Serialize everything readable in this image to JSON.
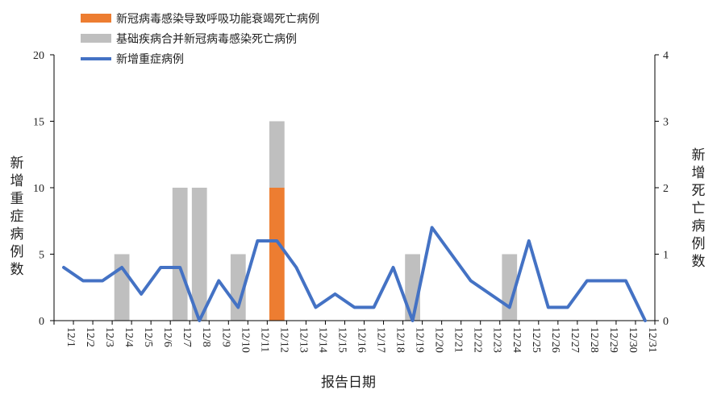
{
  "chart_data": {
    "type": "bar+line",
    "title": "",
    "xlabel": "报告日期",
    "ylabel_left": "新增重症病例数",
    "ylabel_right": "新增死亡病例数",
    "categories": [
      "12/1",
      "12/2",
      "12/3",
      "12/4",
      "12/5",
      "12/6",
      "12/7",
      "12/8",
      "12/9",
      "12/10",
      "12/11",
      "12/12",
      "12/13",
      "12/14",
      "12/15",
      "12/16",
      "12/17",
      "12/18",
      "12/19",
      "12/20",
      "12/21",
      "12/22",
      "12/23",
      "12/24",
      "12/25",
      "12/26",
      "12/27",
      "12/28",
      "12/29",
      "12/30",
      "12/31"
    ],
    "ylim_left": [
      0,
      20
    ],
    "yticks_left": [
      "0",
      "5",
      "10",
      "15",
      "20"
    ],
    "ylim_right": [
      0,
      4
    ],
    "yticks_right": [
      "0",
      "1",
      "2",
      "3",
      "4"
    ],
    "grid": false,
    "legend_position": "top-left",
    "series": [
      {
        "name": "新冠病毒感染导致呼吸功能衰竭死亡病例",
        "kind": "bar",
        "axis": "right",
        "color": "#ED7D31",
        "values": [
          0,
          0,
          0,
          0,
          0,
          0,
          0,
          0,
          0,
          0,
          0,
          2,
          0,
          0,
          0,
          0,
          0,
          0,
          0,
          0,
          0,
          0,
          0,
          0,
          0,
          0,
          0,
          0,
          0,
          0,
          0
        ]
      },
      {
        "name": "基础疾病合并新冠病毒感染死亡病例",
        "kind": "bar",
        "axis": "right",
        "color": "#BFBFBF",
        "values": [
          0,
          0,
          0,
          1,
          0,
          0,
          2,
          2,
          0,
          1,
          0,
          1,
          0,
          0,
          0,
          0,
          0,
          0,
          1,
          0,
          0,
          0,
          0,
          1,
          0,
          0,
          0,
          0,
          0,
          0,
          0
        ]
      },
      {
        "name": "新增重症病例",
        "kind": "line",
        "axis": "left",
        "color": "#4472C4",
        "values": [
          4,
          3,
          3,
          4,
          2,
          4,
          4,
          0,
          3,
          1,
          6,
          6,
          4,
          1,
          2,
          1,
          1,
          4,
          0,
          7,
          5,
          3,
          2,
          1,
          6,
          1,
          1,
          3,
          3,
          3,
          0
        ]
      }
    ]
  }
}
